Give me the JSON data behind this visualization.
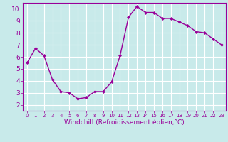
{
  "x": [
    0,
    1,
    2,
    3,
    4,
    5,
    6,
    7,
    8,
    9,
    10,
    11,
    12,
    13,
    14,
    15,
    16,
    17,
    18,
    19,
    20,
    21,
    22,
    23
  ],
  "y": [
    5.5,
    6.7,
    6.1,
    4.1,
    3.1,
    3.0,
    2.5,
    2.6,
    3.1,
    3.1,
    3.9,
    6.1,
    9.3,
    10.2,
    9.7,
    9.7,
    9.2,
    9.2,
    8.9,
    8.6,
    8.1,
    8.0,
    7.5,
    7.0
  ],
  "line_color": "#990099",
  "marker": "D",
  "marker_size": 2.0,
  "bg_color": "#c8eaea",
  "grid_color": "#ffffff",
  "xlabel": "Windchill (Refroidissement éolien,°C)",
  "xlabel_color": "#990099",
  "xlim": [
    -0.5,
    23.5
  ],
  "ylim": [
    1.5,
    10.5
  ],
  "yticks": [
    2,
    3,
    4,
    5,
    6,
    7,
    8,
    9,
    10
  ],
  "xticks": [
    0,
    1,
    2,
    3,
    4,
    5,
    6,
    7,
    8,
    9,
    10,
    11,
    12,
    13,
    14,
    15,
    16,
    17,
    18,
    19,
    20,
    21,
    22,
    23
  ],
  "tick_color": "#990099",
  "spine_color": "#990099",
  "xlabel_fontsize": 6.5,
  "xtick_fontsize": 5.0,
  "ytick_fontsize": 6.5,
  "linewidth": 1.0
}
